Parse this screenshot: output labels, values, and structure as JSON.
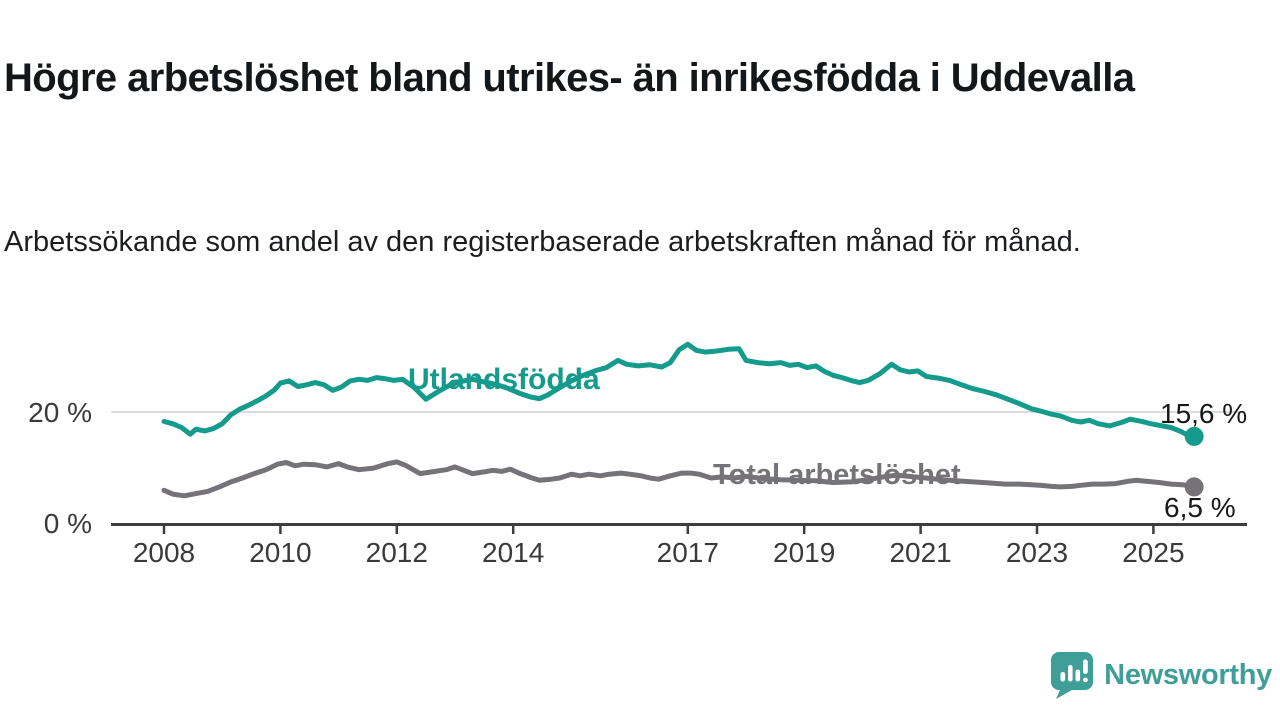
{
  "header": {
    "title": "Högre arbetslöshet bland utrikes- än inrikesfödda i Uddevalla",
    "subtitle": "Arbetssökande som andel av den registerbaserade arbetskraften månad för månad."
  },
  "chart_data": {
    "type": "line",
    "unit": "%",
    "ylim": [
      0,
      36
    ],
    "xlim": [
      2007.1,
      2026.6
    ],
    "grid": "horizontal gridline at 20% only",
    "legend_position": "inline labels on lines",
    "y_ticks": [
      {
        "value": 20,
        "label": "20 %"
      },
      {
        "value": 0,
        "label": "0 %"
      }
    ],
    "x_ticks": [
      {
        "year": 2008,
        "label": "2008"
      },
      {
        "year": 2010,
        "label": "2010"
      },
      {
        "year": 2012,
        "label": "2012"
      },
      {
        "year": 2014,
        "label": "2014"
      },
      {
        "year": 2017,
        "label": "2017"
      },
      {
        "year": 2019,
        "label": "2019"
      },
      {
        "year": 2021,
        "label": "2021"
      },
      {
        "year": 2023,
        "label": "2023"
      },
      {
        "year": 2025,
        "label": "2025"
      }
    ],
    "series": [
      {
        "name": "Utlandsfödda",
        "color": "#149b8c",
        "end_label": "15,6 %",
        "end_value": 15.6,
        "points": [
          [
            2008.0,
            18.3
          ],
          [
            2008.17,
            17.8
          ],
          [
            2008.3,
            17.2
          ],
          [
            2008.45,
            16.0
          ],
          [
            2008.55,
            16.9
          ],
          [
            2008.7,
            16.6
          ],
          [
            2008.85,
            17.0
          ],
          [
            2009.0,
            17.9
          ],
          [
            2009.15,
            19.5
          ],
          [
            2009.3,
            20.5
          ],
          [
            2009.45,
            21.2
          ],
          [
            2009.6,
            22.0
          ],
          [
            2009.75,
            22.9
          ],
          [
            2009.9,
            24.0
          ],
          [
            2010.0,
            25.2
          ],
          [
            2010.15,
            25.6
          ],
          [
            2010.3,
            24.6
          ],
          [
            2010.45,
            24.9
          ],
          [
            2010.6,
            25.3
          ],
          [
            2010.75,
            24.9
          ],
          [
            2010.9,
            23.9
          ],
          [
            2011.05,
            24.5
          ],
          [
            2011.2,
            25.6
          ],
          [
            2011.35,
            25.9
          ],
          [
            2011.5,
            25.7
          ],
          [
            2011.65,
            26.2
          ],
          [
            2011.8,
            26.0
          ],
          [
            2011.95,
            25.7
          ],
          [
            2012.1,
            25.9
          ],
          [
            2012.3,
            24.4
          ],
          [
            2012.5,
            22.3
          ],
          [
            2012.7,
            23.6
          ],
          [
            2012.9,
            24.8
          ],
          [
            2013.1,
            25.5
          ],
          [
            2013.3,
            25.9
          ],
          [
            2013.5,
            25.4
          ],
          [
            2013.7,
            25.0
          ],
          [
            2013.9,
            24.3
          ],
          [
            2014.1,
            23.4
          ],
          [
            2014.3,
            22.7
          ],
          [
            2014.45,
            22.4
          ],
          [
            2014.6,
            23.1
          ],
          [
            2014.8,
            24.4
          ],
          [
            2015.0,
            25.6
          ],
          [
            2015.2,
            26.6
          ],
          [
            2015.4,
            27.4
          ],
          [
            2015.6,
            28.0
          ],
          [
            2015.8,
            29.3
          ],
          [
            2015.95,
            28.6
          ],
          [
            2016.15,
            28.3
          ],
          [
            2016.35,
            28.5
          ],
          [
            2016.55,
            28.1
          ],
          [
            2016.7,
            28.9
          ],
          [
            2016.85,
            31.2
          ],
          [
            2017.0,
            32.2
          ],
          [
            2017.15,
            31.1
          ],
          [
            2017.3,
            30.8
          ],
          [
            2017.5,
            31.0
          ],
          [
            2017.7,
            31.3
          ],
          [
            2017.88,
            31.4
          ],
          [
            2018.0,
            29.3
          ],
          [
            2018.2,
            28.9
          ],
          [
            2018.4,
            28.7
          ],
          [
            2018.6,
            28.9
          ],
          [
            2018.75,
            28.4
          ],
          [
            2018.9,
            28.6
          ],
          [
            2019.05,
            28.0
          ],
          [
            2019.2,
            28.3
          ],
          [
            2019.35,
            27.3
          ],
          [
            2019.5,
            26.6
          ],
          [
            2019.65,
            26.2
          ],
          [
            2019.8,
            25.7
          ],
          [
            2019.95,
            25.3
          ],
          [
            2020.1,
            25.7
          ],
          [
            2020.3,
            26.9
          ],
          [
            2020.5,
            28.6
          ],
          [
            2020.65,
            27.6
          ],
          [
            2020.8,
            27.2
          ],
          [
            2020.95,
            27.4
          ],
          [
            2021.1,
            26.4
          ],
          [
            2021.3,
            26.1
          ],
          [
            2021.5,
            25.7
          ],
          [
            2021.7,
            24.9
          ],
          [
            2021.9,
            24.2
          ],
          [
            2022.1,
            23.7
          ],
          [
            2022.3,
            23.1
          ],
          [
            2022.5,
            22.3
          ],
          [
            2022.7,
            21.5
          ],
          [
            2022.9,
            20.6
          ],
          [
            2023.05,
            20.2
          ],
          [
            2023.25,
            19.6
          ],
          [
            2023.4,
            19.3
          ],
          [
            2023.6,
            18.5
          ],
          [
            2023.75,
            18.2
          ],
          [
            2023.9,
            18.5
          ],
          [
            2024.05,
            17.9
          ],
          [
            2024.25,
            17.5
          ],
          [
            2024.45,
            18.1
          ],
          [
            2024.6,
            18.7
          ],
          [
            2024.8,
            18.3
          ],
          [
            2024.95,
            17.9
          ],
          [
            2025.1,
            17.6
          ],
          [
            2025.3,
            17.2
          ],
          [
            2025.45,
            16.6
          ],
          [
            2025.58,
            15.9
          ],
          [
            2025.7,
            15.6
          ]
        ]
      },
      {
        "name": "Total arbetslöshet",
        "color": "#757379",
        "end_label": "6,5 %",
        "end_value": 6.5,
        "points": [
          [
            2008.0,
            5.9
          ],
          [
            2008.15,
            5.2
          ],
          [
            2008.35,
            4.9
          ],
          [
            2008.55,
            5.3
          ],
          [
            2008.75,
            5.7
          ],
          [
            2008.95,
            6.5
          ],
          [
            2009.15,
            7.4
          ],
          [
            2009.35,
            8.1
          ],
          [
            2009.55,
            8.9
          ],
          [
            2009.75,
            9.6
          ],
          [
            2009.95,
            10.6
          ],
          [
            2010.1,
            10.9
          ],
          [
            2010.25,
            10.3
          ],
          [
            2010.4,
            10.6
          ],
          [
            2010.6,
            10.5
          ],
          [
            2010.8,
            10.1
          ],
          [
            2011.0,
            10.7
          ],
          [
            2011.15,
            10.1
          ],
          [
            2011.35,
            9.6
          ],
          [
            2011.6,
            9.9
          ],
          [
            2011.85,
            10.7
          ],
          [
            2012.0,
            11.0
          ],
          [
            2012.15,
            10.4
          ],
          [
            2012.4,
            8.9
          ],
          [
            2012.6,
            9.2
          ],
          [
            2012.85,
            9.6
          ],
          [
            2013.0,
            10.1
          ],
          [
            2013.15,
            9.5
          ],
          [
            2013.3,
            8.9
          ],
          [
            2013.5,
            9.2
          ],
          [
            2013.65,
            9.5
          ],
          [
            2013.8,
            9.3
          ],
          [
            2013.95,
            9.7
          ],
          [
            2014.1,
            9.0
          ],
          [
            2014.3,
            8.2
          ],
          [
            2014.45,
            7.7
          ],
          [
            2014.65,
            7.9
          ],
          [
            2014.8,
            8.1
          ],
          [
            2015.0,
            8.8
          ],
          [
            2015.15,
            8.5
          ],
          [
            2015.3,
            8.8
          ],
          [
            2015.5,
            8.5
          ],
          [
            2015.65,
            8.8
          ],
          [
            2015.85,
            9.0
          ],
          [
            2016.0,
            8.8
          ],
          [
            2016.2,
            8.5
          ],
          [
            2016.35,
            8.1
          ],
          [
            2016.5,
            7.9
          ],
          [
            2016.7,
            8.5
          ],
          [
            2016.9,
            9.0
          ],
          [
            2017.05,
            9.0
          ],
          [
            2017.2,
            8.8
          ],
          [
            2017.4,
            8.1
          ],
          [
            2017.6,
            8.3
          ],
          [
            2017.8,
            8.1
          ],
          [
            2018.0,
            8.4
          ],
          [
            2018.3,
            8.0
          ],
          [
            2018.6,
            7.8
          ],
          [
            2018.9,
            7.7
          ],
          [
            2019.2,
            7.6
          ],
          [
            2019.5,
            7.3
          ],
          [
            2019.8,
            7.4
          ],
          [
            2020.1,
            7.8
          ],
          [
            2020.4,
            8.4
          ],
          [
            2020.6,
            8.6
          ],
          [
            2020.8,
            8.4
          ],
          [
            2021.0,
            8.2
          ],
          [
            2021.3,
            7.9
          ],
          [
            2021.6,
            7.6
          ],
          [
            2021.9,
            7.4
          ],
          [
            2022.2,
            7.2
          ],
          [
            2022.45,
            7.0
          ],
          [
            2022.7,
            7.0
          ],
          [
            2022.9,
            6.9
          ],
          [
            2023.05,
            6.8
          ],
          [
            2023.25,
            6.6
          ],
          [
            2023.4,
            6.5
          ],
          [
            2023.6,
            6.6
          ],
          [
            2023.75,
            6.8
          ],
          [
            2023.95,
            7.0
          ],
          [
            2024.15,
            7.0
          ],
          [
            2024.35,
            7.1
          ],
          [
            2024.55,
            7.5
          ],
          [
            2024.7,
            7.7
          ],
          [
            2024.9,
            7.5
          ],
          [
            2025.1,
            7.3
          ],
          [
            2025.3,
            7.0
          ],
          [
            2025.5,
            6.9
          ],
          [
            2025.7,
            6.5
          ]
        ]
      }
    ],
    "axis_color": "#3d3d3d",
    "gridline_color": "#dcdcdc"
  },
  "branding": {
    "name": "Newsworthy",
    "logo_color": "#3f9e98"
  }
}
